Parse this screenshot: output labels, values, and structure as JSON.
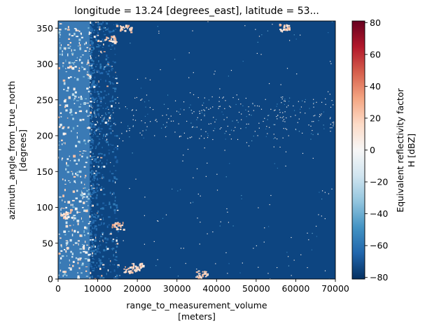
{
  "chart_data": {
    "type": "heatmap",
    "title": "longitude = 13.24 [degrees_east], latitude = 53...",
    "xlabel": [
      "range_to_measurement_volume",
      "[meters]"
    ],
    "ylabel": [
      "azimuth_angle_from_true_north",
      "[degrees]"
    ],
    "xlim": [
      0,
      70000
    ],
    "ylim": [
      0,
      360
    ],
    "x_ticks": [
      0,
      10000,
      20000,
      30000,
      40000,
      50000,
      60000,
      70000
    ],
    "y_ticks": [
      0,
      50,
      100,
      150,
      200,
      250,
      300,
      350
    ],
    "colorbar": {
      "label": [
        "Equivalent reflectivity factor",
        "H [dBZ]"
      ],
      "range": [
        -81,
        81
      ],
      "ticks": [
        -80,
        -60,
        -40,
        -20,
        0,
        20,
        40,
        60,
        80
      ],
      "colormap": "RdBu_r"
    },
    "regions": {
      "background_value": -80,
      "near_strip": {
        "x_range": [
          0,
          8000
        ],
        "value": -65
      },
      "edge_clutter_x": [
        8000,
        15000
      ],
      "ring_band_y": [
        195,
        255
      ],
      "hotspots": [
        {
          "x": 2000,
          "y": 90,
          "value": 25
        },
        {
          "x": 13000,
          "y": 335,
          "value": 30
        },
        {
          "x": 17000,
          "y": 350,
          "value": 30
        },
        {
          "x": 18000,
          "y": 14,
          "value": 30
        },
        {
          "x": 20000,
          "y": 18,
          "value": 25
        },
        {
          "x": 15000,
          "y": 75,
          "value": 35
        },
        {
          "x": 36000,
          "y": 7,
          "value": 30
        },
        {
          "x": 57000,
          "y": 352,
          "value": 30
        }
      ]
    }
  },
  "colors": {
    "cmap": [
      "#053061",
      "#2166ac",
      "#4393c3",
      "#92c5de",
      "#d1e5f0",
      "#f7f7f7",
      "#fddbc7",
      "#f4a582",
      "#d6604d",
      "#b2182b",
      "#67001f"
    ],
    "background": "#0d4581",
    "near_strip": "#3a7ab5"
  }
}
